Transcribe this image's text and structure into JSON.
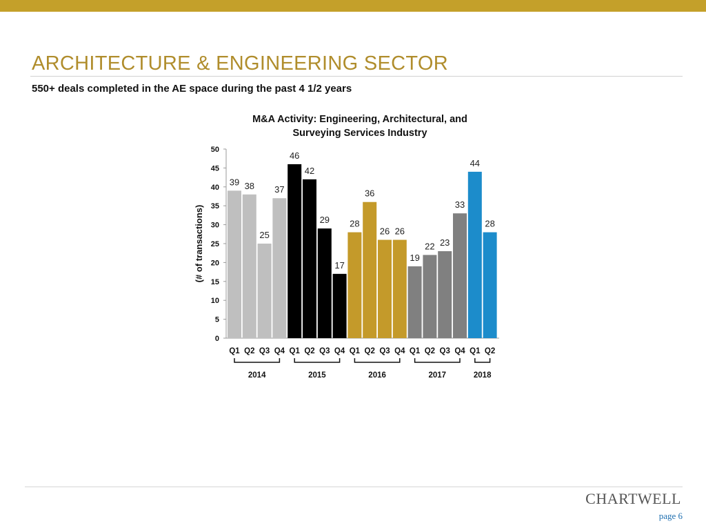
{
  "header": {
    "title": "ARCHITECTURE & ENGINEERING SECTOR",
    "subtitle": "550+ deals completed in the AE space during the past 4 1/2 years"
  },
  "footer": {
    "logo": "CHARTWELL",
    "page": "page 6"
  },
  "colors": {
    "gold_bar": "#C4A02A",
    "title": "#B08D2C"
  },
  "chart_data": {
    "type": "bar",
    "title": "M&A Activity: Engineering, Architectural, and Surveying Services Industry",
    "title_lines": [
      "M&A Activity: Engineering, Architectural, and",
      "Surveying Services Industry"
    ],
    "ylabel": "(# of transactions)",
    "xlabel": "",
    "ylim": [
      0,
      50
    ],
    "yticks": [
      0,
      5,
      10,
      15,
      20,
      25,
      30,
      35,
      40,
      45,
      50
    ],
    "categories": [
      "Q1",
      "Q2",
      "Q3",
      "Q4",
      "Q1",
      "Q2",
      "Q3",
      "Q4",
      "Q1",
      "Q2",
      "Q3",
      "Q4",
      "Q1",
      "Q2",
      "Q3",
      "Q4",
      "Q1",
      "Q2"
    ],
    "values": [
      39,
      38,
      25,
      37,
      46,
      42,
      29,
      17,
      28,
      36,
      26,
      26,
      19,
      22,
      23,
      33,
      44,
      28
    ],
    "groups": [
      {
        "label": "2014",
        "count": 4,
        "color": "#BFBFBF"
      },
      {
        "label": "2015",
        "count": 4,
        "color": "#000000"
      },
      {
        "label": "2016",
        "count": 4,
        "color": "#C49A2A"
      },
      {
        "label": "2017",
        "count": 4,
        "color": "#808080"
      },
      {
        "label": "2018",
        "count": 2,
        "color": "#1C8CCB"
      }
    ],
    "grid": false,
    "legend": "none"
  }
}
